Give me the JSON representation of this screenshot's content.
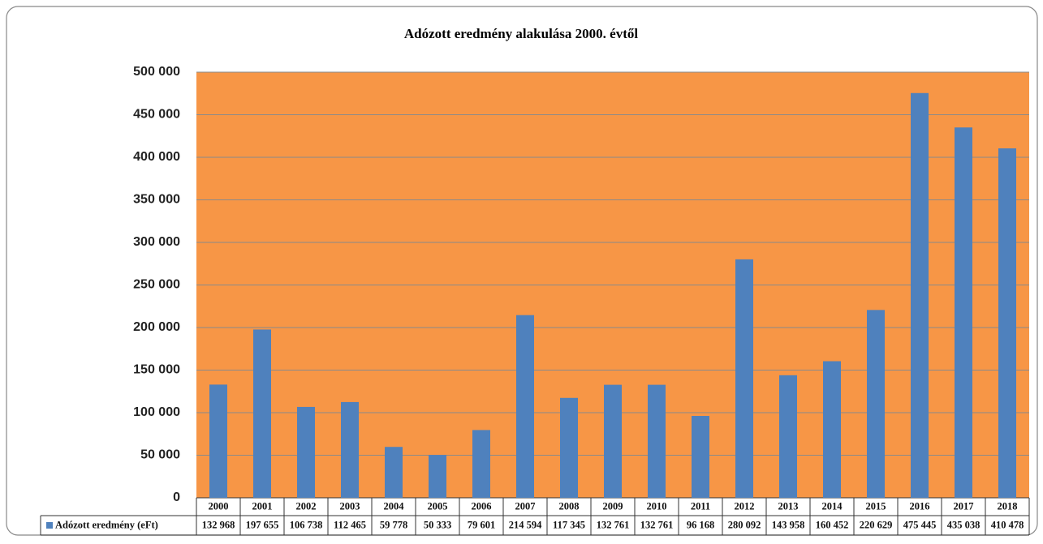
{
  "chart_data": {
    "type": "bar",
    "title": "Adózott eredmény  alakulása 2000. évtől",
    "categories": [
      "2000",
      "2001",
      "2002",
      "2003",
      "2004",
      "2005",
      "2006",
      "2007",
      "2008",
      "2009",
      "2010",
      "2011",
      "2012",
      "2013",
      "2014",
      "2015",
      "2016",
      "2017",
      "2018"
    ],
    "series": [
      {
        "name": "Adózott eredmény (eFt)",
        "color": "#4f81bd",
        "values": [
          132968,
          197655,
          106738,
          112465,
          59778,
          50333,
          79601,
          214594,
          117345,
          132761,
          132761,
          96168,
          280092,
          143958,
          160452,
          220629,
          475445,
          435038,
          410478
        ],
        "value_labels": [
          "132 968",
          "197 655",
          "106 738",
          "112 465",
          "59 778",
          "50 333",
          "79 601",
          "214 594",
          "117 345",
          "132 761",
          "132 761",
          "96 168",
          "280 092",
          "143 958",
          "160 452",
          "220 629",
          "475 445",
          "435 038",
          "410 478"
        ]
      }
    ],
    "ylim": [
      0,
      500000
    ],
    "yticks": [
      0,
      {
        "value": 50000,
        "label": "50 000"
      },
      {
        "value": 100000,
        "label": "100 000"
      },
      {
        "value": 150000,
        "label": "150 000"
      },
      {
        "value": 200000,
        "label": "200 000"
      },
      {
        "value": 250000,
        "label": "250 000"
      },
      {
        "value": 300000,
        "label": "300 000"
      },
      {
        "value": 350000,
        "label": "350 000"
      },
      {
        "value": 400000,
        "label": "400 000"
      },
      {
        "value": 450000,
        "label": "450 000"
      },
      {
        "value": 500000,
        "label": "500 000"
      }
    ],
    "plot_background": "#f79646",
    "grid": true
  }
}
